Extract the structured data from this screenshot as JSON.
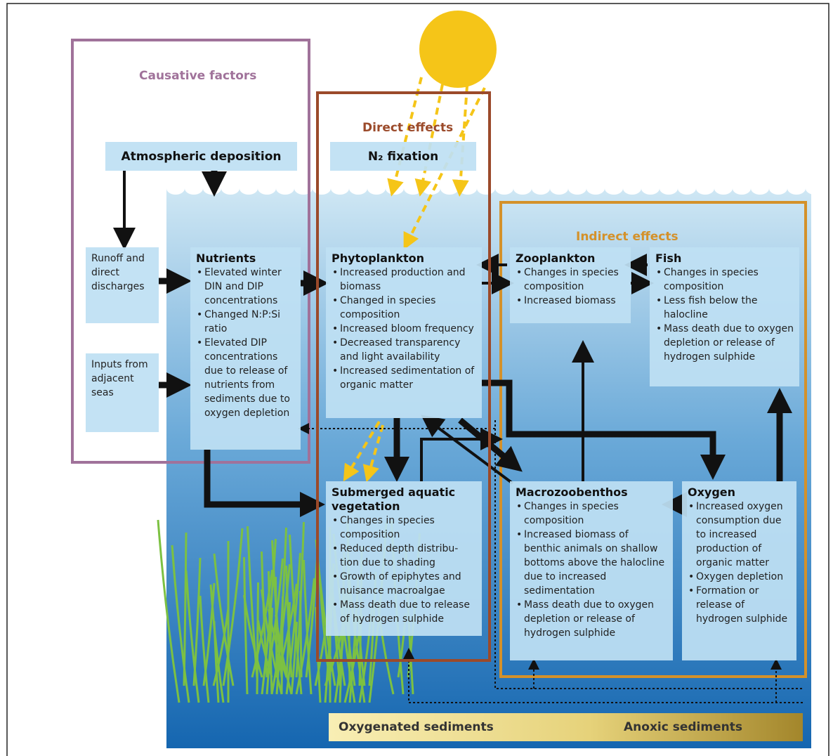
{
  "labels": {
    "causative_factors": "Causative factors",
    "direct_effects": "Direct effects",
    "indirect_effects": "Indirect effects"
  },
  "boxes": {
    "atmospheric": {
      "title": "Atmospheric deposition"
    },
    "n2": {
      "title": "N₂ fixation"
    },
    "runoff": {
      "title": "Runoff and direct discharges"
    },
    "inputs": {
      "title": "Inputs from adjacent seas"
    },
    "nutrients": {
      "title": "Nutrients",
      "items": [
        "Elevated winter DIN and DIP concentrations",
        "Changed N:P:Si ratio",
        "Elevated DIP concentrations due to release of nutrients from sediments due to oxygen depletion"
      ]
    },
    "phytoplankton": {
      "title": "Phytoplankton",
      "items": [
        "Increased production and biomass",
        "Changed in species composition",
        "Increased bloom frequency",
        "Decreased transparency and light availability",
        "Increased sedimentation of organic matter"
      ]
    },
    "zooplankton": {
      "title": "Zooplankton",
      "items": [
        "Changes in species composition",
        "Increased biomass"
      ]
    },
    "fish": {
      "title": "Fish",
      "items": [
        "Changes in species composition",
        "Less fish below the halocline",
        "Mass death due to oxygen depletion or release of hydrogen sulphide"
      ]
    },
    "vegetation": {
      "title": "Submerged aquatic vegetation",
      "items": [
        "Changes in species composition",
        "Reduced depth distribu-tion due to shading",
        "Growth of epiphytes and nuisance macroalgae",
        "Mass death due to release of hydrogen sulphide"
      ]
    },
    "macrozoobenthos": {
      "title": "Macrozoobenthos",
      "items": [
        "Changes in species composition",
        "Increased biomass of benthic animals on shallow bottoms above the halocline due to increased sedimentation",
        "Mass death due to oxygen depletion or release of hydrogen sulphide"
      ]
    },
    "oxygen": {
      "title": "Oxygen",
      "items": [
        "Increased oxygen consumption due to increased production of organic matter",
        "Oxygen depletion",
        "Formation or release of hydrogen sulphide"
      ]
    }
  },
  "sediments": {
    "oxygenated": "Oxygenated sediments",
    "anoxic": "Anoxic sediments"
  }
}
